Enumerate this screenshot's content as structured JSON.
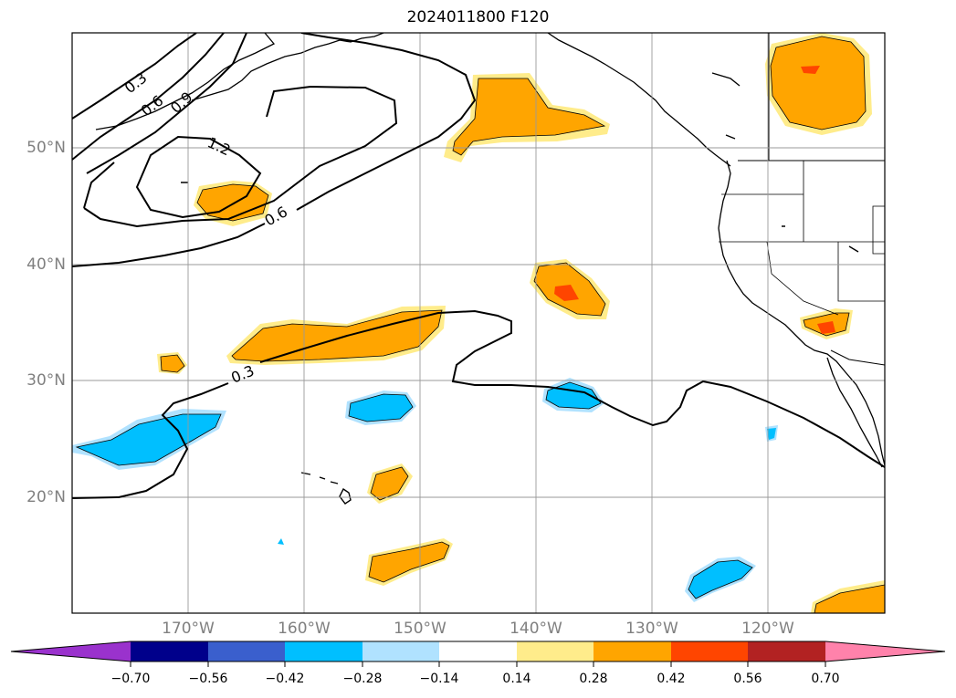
{
  "title": "2024011800 F120",
  "latitude_labels": [
    "50°N",
    "40°N",
    "30°N",
    "20°N"
  ],
  "longitude_labels": [
    "170°W",
    "160°W",
    "150°W",
    "140°W",
    "130°W",
    "120°W"
  ],
  "contour_labels": [
    "0.3",
    "0.6",
    "0.9",
    "1.2",
    "0.6",
    "0.3"
  ],
  "colorbar": {
    "tick_labels": [
      "−0.70",
      "−0.56",
      "−0.42",
      "−0.28",
      "−0.14",
      "0.14",
      "0.28",
      "0.42",
      "0.56",
      "0.70"
    ],
    "colors": [
      "#9a32cd",
      "#00008b",
      "#3a5fcd",
      "#00bfff",
      "#b0e2ff",
      "#ffffff",
      "#ffec8b",
      "#ffa500",
      "#ff4500",
      "#b22222",
      "#ff82ab"
    ]
  }
}
